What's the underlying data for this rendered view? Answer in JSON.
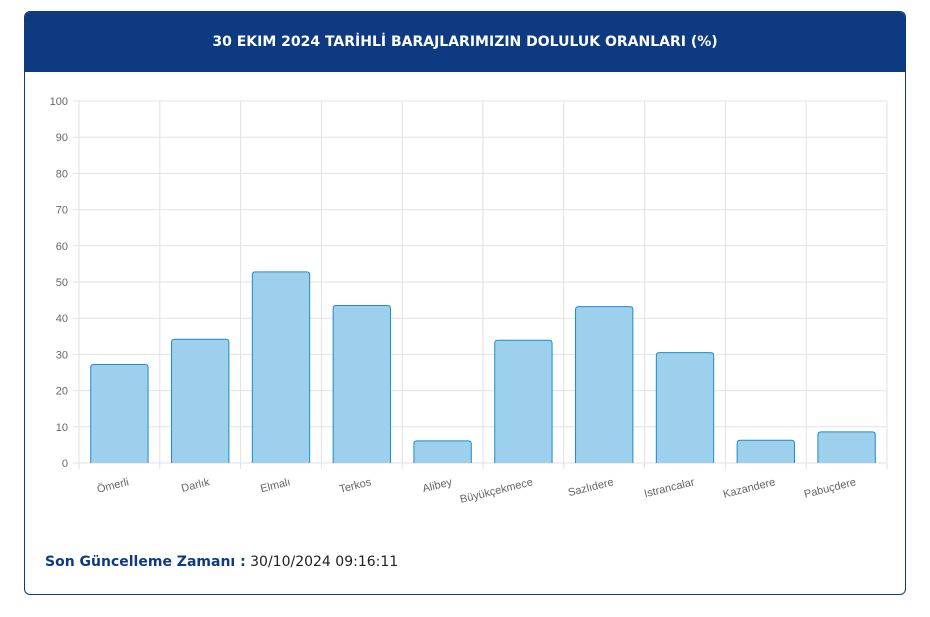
{
  "chart_data": {
    "type": "bar",
    "title": "30 EKIM 2024 TARİHLİ BARAJLARIMIZIN DOLULUK ORANLARI (%)",
    "categories": [
      "Ömerli",
      "Darlık",
      "Elmalı",
      "Terkos",
      "Alibey",
      "Büyükçekmece",
      "Sazlıdere",
      "Istrancalar",
      "Kazandere",
      "Pabuçdere"
    ],
    "values": [
      27.2,
      34.2,
      52.8,
      43.5,
      6.1,
      33.9,
      43.2,
      30.5,
      6.3,
      8.6
    ],
    "color": "#9dd0ec",
    "border_color": "#1f8cc6",
    "ylim": [
      0,
      100
    ],
    "yticks": [
      0,
      10,
      20,
      30,
      40,
      50,
      60,
      70,
      80,
      90,
      100
    ],
    "grid": true
  },
  "footer": {
    "label": "Son Güncelleme Zamanı :",
    "value": "30/10/2024 09:16:11"
  }
}
